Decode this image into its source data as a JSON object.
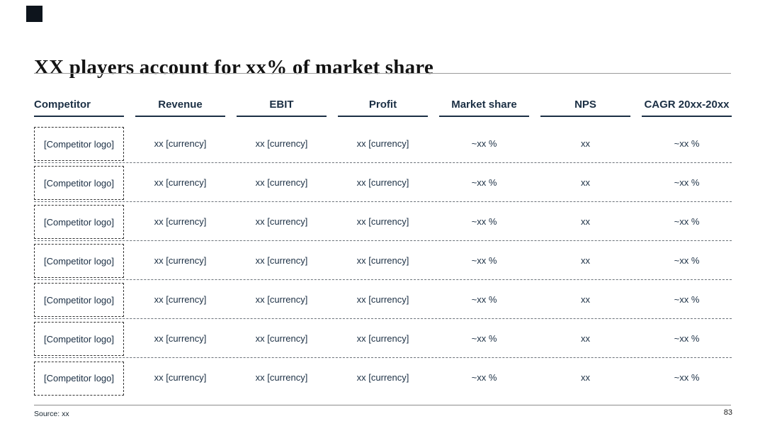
{
  "slide": {
    "title": "XX players account for xx% of market share",
    "footer": {
      "source": "Source: xx",
      "page": "83"
    }
  },
  "table": {
    "columns": [
      "Competitor",
      "Revenue",
      "EBIT",
      "Profit",
      "Market share",
      "NPS",
      "CAGR 20xx-20xx"
    ],
    "rows": [
      {
        "logo": "[Competitor logo]",
        "revenue": "xx [currency]",
        "ebit": "xx [currency]",
        "profit": "xx [currency]",
        "market_share": "~xx %",
        "nps": "xx",
        "cagr": "~xx %"
      },
      {
        "logo": "[Competitor logo]",
        "revenue": "xx [currency]",
        "ebit": "xx [currency]",
        "profit": "xx [currency]",
        "market_share": "~xx %",
        "nps": "xx",
        "cagr": "~xx %"
      },
      {
        "logo": "[Competitor logo]",
        "revenue": "xx [currency]",
        "ebit": "xx [currency]",
        "profit": "xx [currency]",
        "market_share": "~xx %",
        "nps": "xx",
        "cagr": "~xx %"
      },
      {
        "logo": "[Competitor logo]",
        "revenue": "xx [currency]",
        "ebit": "xx [currency]",
        "profit": "xx [currency]",
        "market_share": "~xx %",
        "nps": "xx",
        "cagr": "~xx %"
      },
      {
        "logo": "[Competitor logo]",
        "revenue": "xx [currency]",
        "ebit": "xx [currency]",
        "profit": "xx [currency]",
        "market_share": "~xx %",
        "nps": "xx",
        "cagr": "~xx %"
      },
      {
        "logo": "[Competitor logo]",
        "revenue": "xx [currency]",
        "ebit": "xx [currency]",
        "profit": "xx [currency]",
        "market_share": "~xx %",
        "nps": "xx",
        "cagr": "~xx %"
      },
      {
        "logo": "[Competitor logo]",
        "revenue": "xx [currency]",
        "ebit": "xx [currency]",
        "profit": "xx [currency]",
        "market_share": "~xx %",
        "nps": "xx",
        "cagr": "~xx %"
      }
    ]
  },
  "colors": {
    "header_text": "#1b2f44",
    "cell_text": "#1b2f44",
    "row_separator": "#6a7178",
    "accent_square": "#0d141c",
    "title_text": "#131313"
  }
}
